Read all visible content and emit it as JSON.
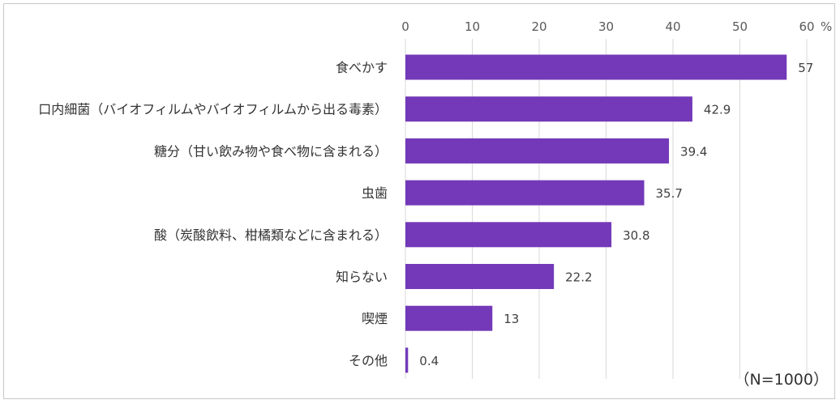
{
  "chart_data": {
    "type": "bar",
    "orientation": "horizontal",
    "categories": [
      "食べかす",
      "口内細菌（バイオフィルムやバイオフィルムから出る毒素）",
      "糖分（甘い飲み物や食べ物に含まれる）",
      "虫歯",
      "酸（炭酸飲料、柑橘類などに含まれる）",
      "知らない",
      "喫煙",
      "その他"
    ],
    "values": [
      57,
      42.9,
      39.4,
      35.7,
      30.8,
      22.2,
      13,
      0.4
    ],
    "value_labels": [
      "57",
      "42.9",
      "39.4",
      "35.7",
      "30.8",
      "22.2",
      "13",
      "0.4"
    ],
    "xlim": [
      0,
      60
    ],
    "x_ticks": [
      "0",
      "10",
      "20",
      "30",
      "40",
      "50",
      "60"
    ],
    "unit": "%",
    "note": "（N=1000）",
    "x_axis_position": "top",
    "grid": true,
    "bar_color": "#7339b8"
  }
}
